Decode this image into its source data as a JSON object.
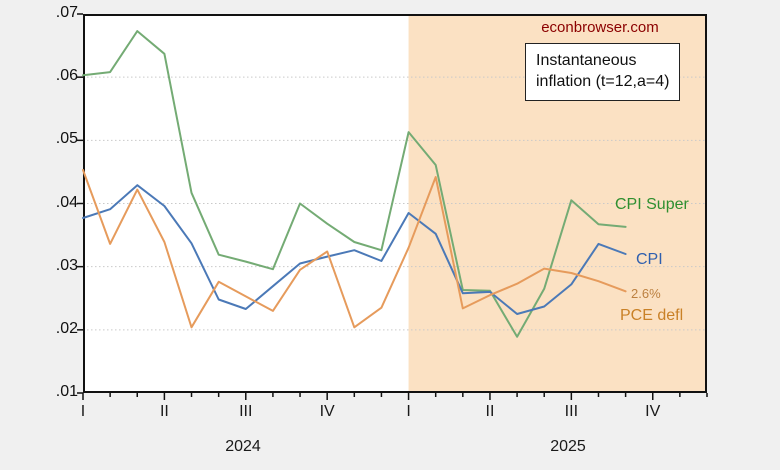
{
  "site_credit": "econbrowser.com",
  "annotation_box": {
    "line1": "Instantaneous",
    "line2": "inflation (t=12,a=4)"
  },
  "series_labels": {
    "cpi_super": "CPI Super",
    "cpi": "CPI",
    "pce": "PCE defl",
    "pce_last_value": "2.6%"
  },
  "colors": {
    "cpi_super_line": "#74ab74",
    "cpi_line": "#4b79b7",
    "pce_line": "#e69b5c",
    "shaded_region": "#fbe1c3",
    "plot_background": "#ffffff",
    "outer_background": "#f0f0f0",
    "gridline": "#c9c9c9",
    "axis": "#111111",
    "credit_text": "#8b0000"
  },
  "chart_data": {
    "type": "line",
    "title_annotation": "Instantaneous inflation (t=12,a=4)",
    "frequency": "monthly",
    "x_axis_start": "2024-01",
    "x_axis_end": "2025-12",
    "data_end": "2025-09",
    "ylim": [
      0.01,
      0.07
    ],
    "y_tick_values": [
      0.07,
      0.06,
      0.05,
      0.04,
      0.03,
      0.02,
      0.01
    ],
    "y_tick_labels": [
      ".07",
      ".06",
      ".05",
      ".04",
      ".03",
      ".02",
      ".01"
    ],
    "x_quarter_labels": [
      "I",
      "II",
      "III",
      "IV",
      "I",
      "II",
      "III",
      "IV"
    ],
    "x_quarter_month_index": [
      0,
      3,
      6,
      9,
      12,
      15,
      18,
      21
    ],
    "year_labels": [
      "2024",
      "2025"
    ],
    "grid": "dotted horizontal",
    "legend_position": "in-plot right labels",
    "shaded_region": {
      "start": "2025-01",
      "end": "2025-12"
    },
    "months": [
      "2024-01",
      "2024-02",
      "2024-03",
      "2024-04",
      "2024-05",
      "2024-06",
      "2024-07",
      "2024-08",
      "2024-09",
      "2024-10",
      "2024-11",
      "2024-12",
      "2025-01",
      "2025-02",
      "2025-03",
      "2025-04",
      "2025-05",
      "2025-06",
      "2025-07",
      "2025-08",
      "2025-09"
    ],
    "series": [
      {
        "name": "CPI Super",
        "color": "#74ab74",
        "values": [
          0.0603,
          0.0608,
          0.0673,
          0.0637,
          0.0417,
          0.0319,
          0.0308,
          0.0296,
          0.04,
          0.0368,
          0.0339,
          0.0326,
          0.0513,
          0.0461,
          0.0263,
          0.0262,
          0.0189,
          0.0265,
          0.0405,
          0.0367,
          0.0363
        ]
      },
      {
        "name": "CPI",
        "color": "#4b79b7",
        "values": [
          0.0377,
          0.0391,
          0.0429,
          0.0396,
          0.0337,
          0.0248,
          0.0233,
          0.0269,
          0.0305,
          0.0316,
          0.0326,
          0.0309,
          0.0385,
          0.0352,
          0.0258,
          0.026,
          0.0225,
          0.0237,
          0.0272,
          0.0336,
          0.032
        ]
      },
      {
        "name": "PCE defl",
        "color": "#e69b5c",
        "values": [
          0.0453,
          0.0336,
          0.0422,
          0.0339,
          0.0204,
          0.0276,
          0.0253,
          0.023,
          0.0295,
          0.0324,
          0.0204,
          0.0235,
          0.033,
          0.0442,
          0.0234,
          0.0255,
          0.0273,
          0.0297,
          0.029,
          0.0277,
          0.0261
        ]
      }
    ]
  }
}
